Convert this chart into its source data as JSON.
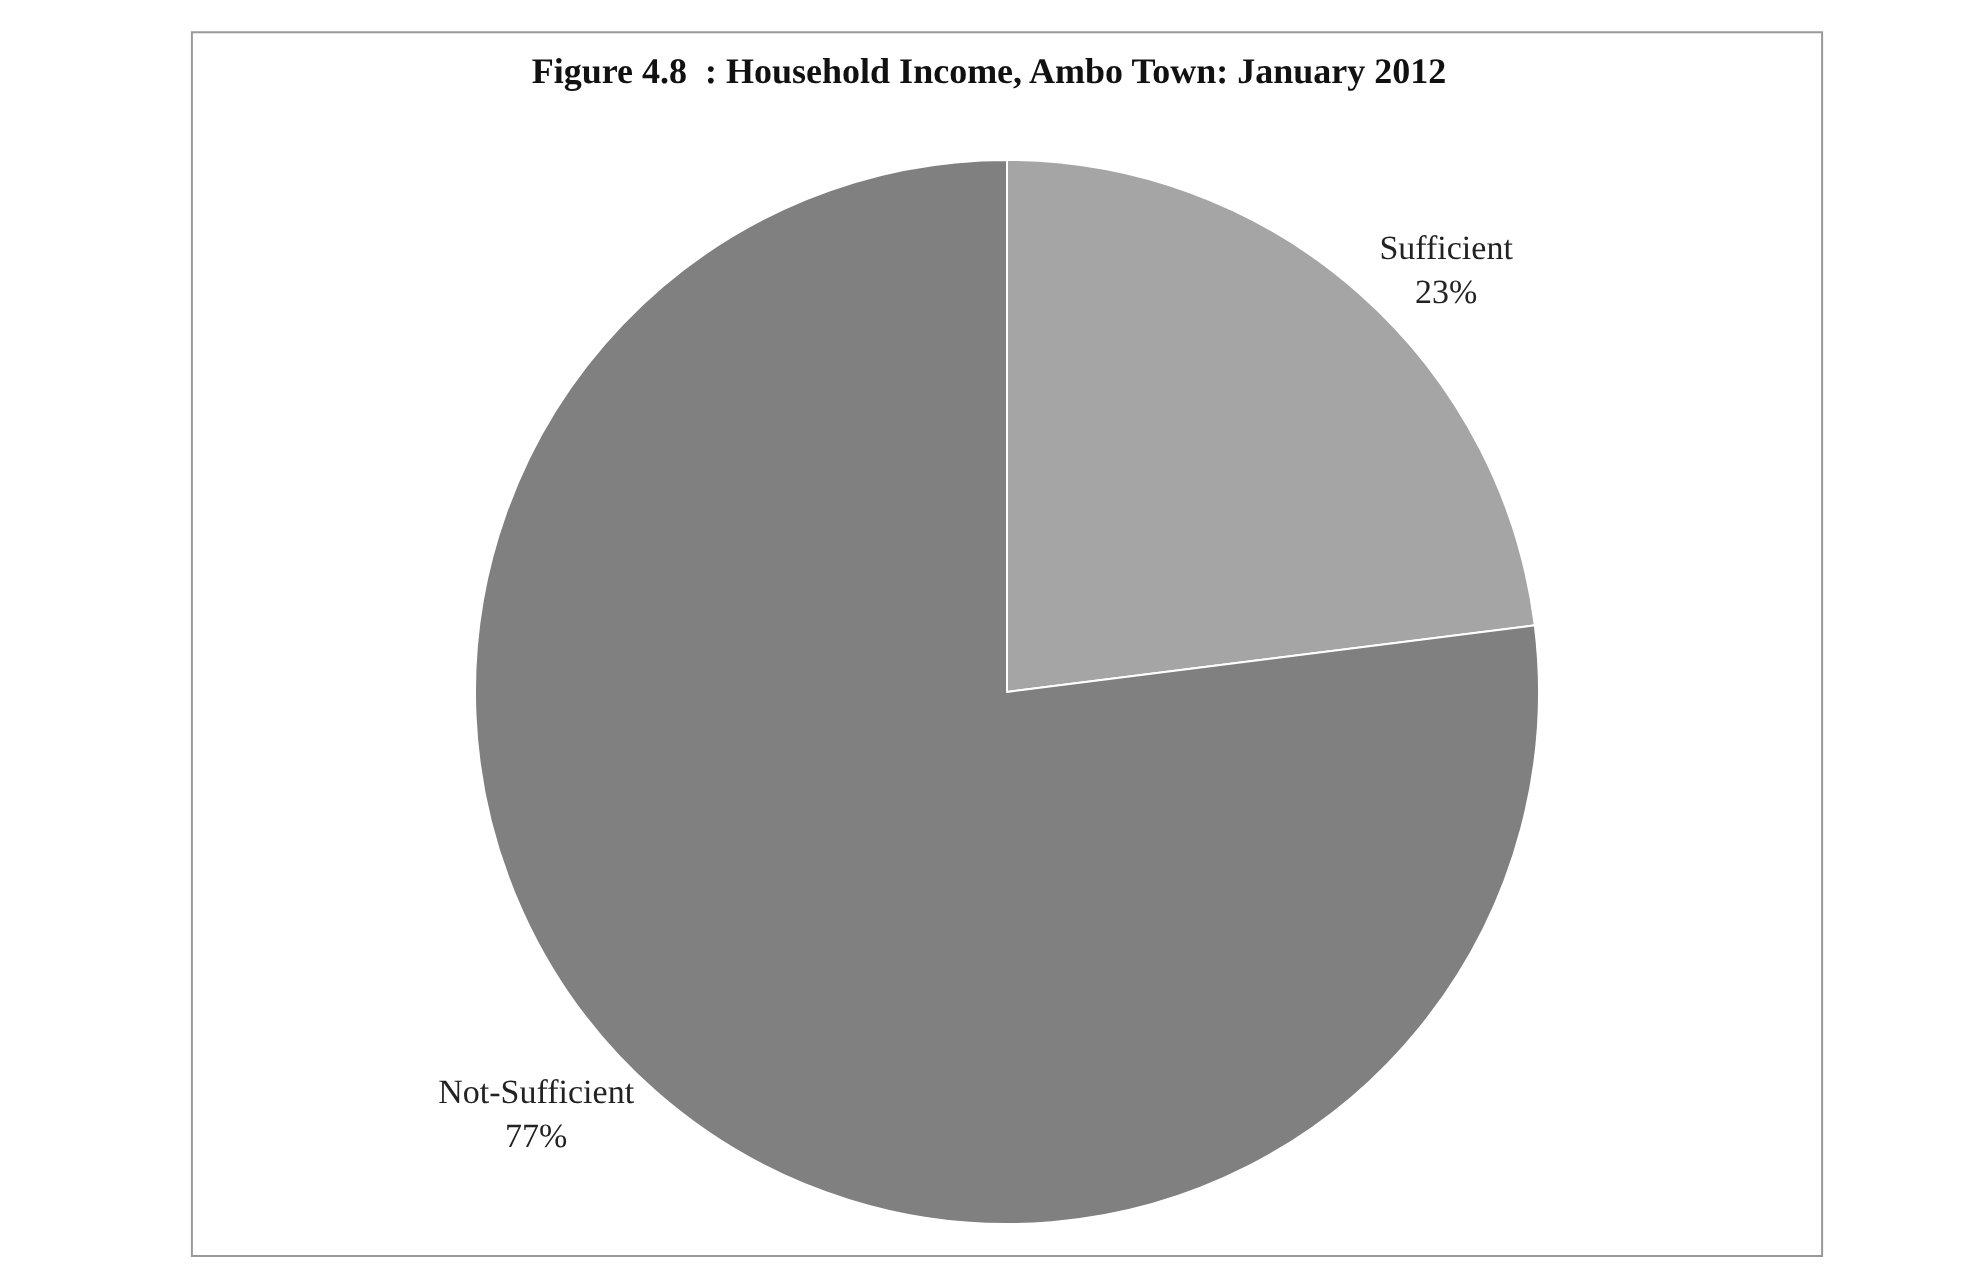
{
  "chart_data": {
    "type": "pie",
    "title": "Figure 4.8  : Household Income, Ambo Town: January 2012",
    "categories": [
      "Sufficient",
      "Not-Sufficient"
    ],
    "values": [
      23,
      77
    ],
    "value_labels": [
      "23%",
      "77%"
    ],
    "colors": [
      "#a5a5a5",
      "#808080"
    ],
    "legend": false
  }
}
